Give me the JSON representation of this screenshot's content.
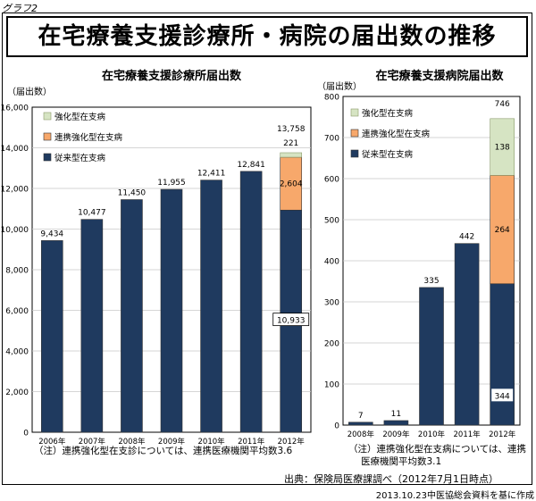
{
  "graph_label": "グラフ2",
  "main_title": "在宅療養支援診療所・病院の届出数の推移",
  "source": "出典：保険局医療課調べ（2012年7月1日時点）",
  "credit": "2013.10.23中医協総会資料を基に作成",
  "colors": {
    "conventional": "#1f3a5f",
    "cooperative": "#f7a86b",
    "strengthened": "#d6e4c3",
    "strengthened_border": "#8a9a6a",
    "plot_bg": "#ffffff",
    "grid": "#c8c8c8"
  },
  "chart_data": [
    {
      "type": "bar",
      "title": "在宅療養支援診療所届出数",
      "ylabel": "（届出数）",
      "ylim": [
        0,
        16000
      ],
      "yticks": [
        0,
        2000,
        4000,
        6000,
        8000,
        10000,
        12000,
        14000,
        16000
      ],
      "ytick_labels": [
        "0",
        "2,000",
        "4,000",
        "6,000",
        "8,000",
        "10,000",
        "12,000",
        "14,000",
        "16,000"
      ],
      "categories": [
        "2006年",
        "2007年",
        "2008年",
        "2009年",
        "2010年",
        "2011年",
        "2012年"
      ],
      "series": [
        {
          "name": "従来型在支病",
          "key": "conventional",
          "values": [
            9434,
            10477,
            11450,
            11955,
            12411,
            12841,
            10933
          ]
        },
        {
          "name": "連携強化型在支病",
          "key": "cooperative",
          "values": [
            0,
            0,
            0,
            0,
            0,
            0,
            2604
          ]
        },
        {
          "name": "強化型在支病",
          "key": "strengthened",
          "values": [
            0,
            0,
            0,
            0,
            0,
            0,
            221
          ]
        }
      ],
      "legend": [
        "強化型在支病",
        "連携強化型在支病",
        "従来型在支病"
      ],
      "totals": [
        9434,
        10477,
        11450,
        11955,
        12411,
        12841,
        13758
      ],
      "total_labels": [
        "9,434",
        "10,477",
        "11,450",
        "11,955",
        "12,411",
        "12,841",
        "13,758"
      ],
      "segment_labels_2012": {
        "conventional": "10,933",
        "cooperative": "2,604",
        "strengthened": "221"
      },
      "note": "（注）連携強化型在支診については、連携医療機関平均数3.6"
    },
    {
      "type": "bar",
      "title": "在宅療養支援病院届出数",
      "ylabel": "（届出数）",
      "ylim": [
        0,
        800
      ],
      "yticks": [
        0,
        100,
        200,
        300,
        400,
        500,
        600,
        700,
        800
      ],
      "ytick_labels": [
        "0",
        "100",
        "200",
        "300",
        "400",
        "500",
        "600",
        "700",
        "800"
      ],
      "categories": [
        "2008年",
        "2009年",
        "2010年",
        "2011年",
        "2012年"
      ],
      "series": [
        {
          "name": "従来型在支病",
          "key": "conventional",
          "values": [
            7,
            11,
            335,
            442,
            344
          ]
        },
        {
          "name": "連携強化型在支病",
          "key": "cooperative",
          "values": [
            0,
            0,
            0,
            0,
            264
          ]
        },
        {
          "name": "強化型在支病",
          "key": "strengthened",
          "values": [
            0,
            0,
            0,
            0,
            138
          ]
        }
      ],
      "legend": [
        "強化型在支病",
        "連携強化型在支病",
        "従来型在支病"
      ],
      "totals": [
        7,
        11,
        335,
        442,
        746
      ],
      "total_labels": [
        "7",
        "11",
        "335",
        "442",
        "746"
      ],
      "segment_labels_2012": {
        "conventional": "344",
        "cooperative": "264",
        "strengthened": "138"
      },
      "note_lines": [
        "（注）連携強化型在支病については、連携",
        "医療機関平均数3.1"
      ]
    }
  ]
}
